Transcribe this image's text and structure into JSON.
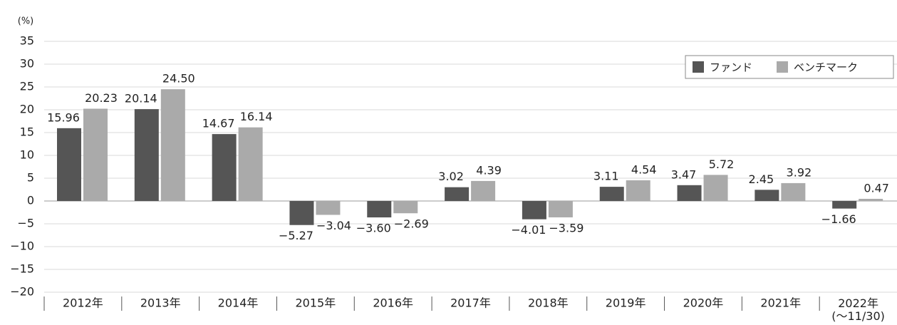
{
  "chart_data": {
    "type": "bar",
    "y_label": "(%)",
    "categories": [
      "2012年",
      "2013年",
      "2014年",
      "2015年",
      "2016年",
      "2017年",
      "2018年",
      "2019年",
      "2020年",
      "2021年",
      "2022年\n(〜11/30)"
    ],
    "series": [
      {
        "name": "ファンド",
        "color": "#555555",
        "values": [
          15.96,
          20.14,
          14.67,
          -5.27,
          -3.6,
          3.02,
          -4.01,
          3.11,
          3.47,
          2.45,
          -1.66
        ],
        "value_labels": [
          "15.96",
          "20.14",
          "14.67",
          "−5.27",
          "−3.60",
          "3.02",
          "−4.01",
          "3.11",
          "3.47",
          "2.45",
          "−1.66"
        ]
      },
      {
        "name": "ベンチマーク",
        "color": "#aaaaaa",
        "values": [
          20.23,
          24.5,
          16.14,
          -3.04,
          -2.69,
          4.39,
          -3.59,
          4.54,
          5.72,
          3.92,
          0.47
        ],
        "value_labels": [
          "20.23",
          "24.50",
          "16.14",
          "−3.04",
          "−2.69",
          "4.39",
          "−3.59",
          "4.54",
          "5.72",
          "3.92",
          "0.47"
        ]
      }
    ],
    "ylim": [
      -20,
      35
    ],
    "yticks": [
      {
        "value": -20,
        "label": "−20"
      },
      {
        "value": -15,
        "label": "−15"
      },
      {
        "value": -10,
        "label": "−10"
      },
      {
        "value": -5,
        "label": "−5"
      },
      0,
      5,
      10,
      15,
      20,
      25,
      30,
      35
    ],
    "grid": true,
    "legend": "upper right"
  }
}
